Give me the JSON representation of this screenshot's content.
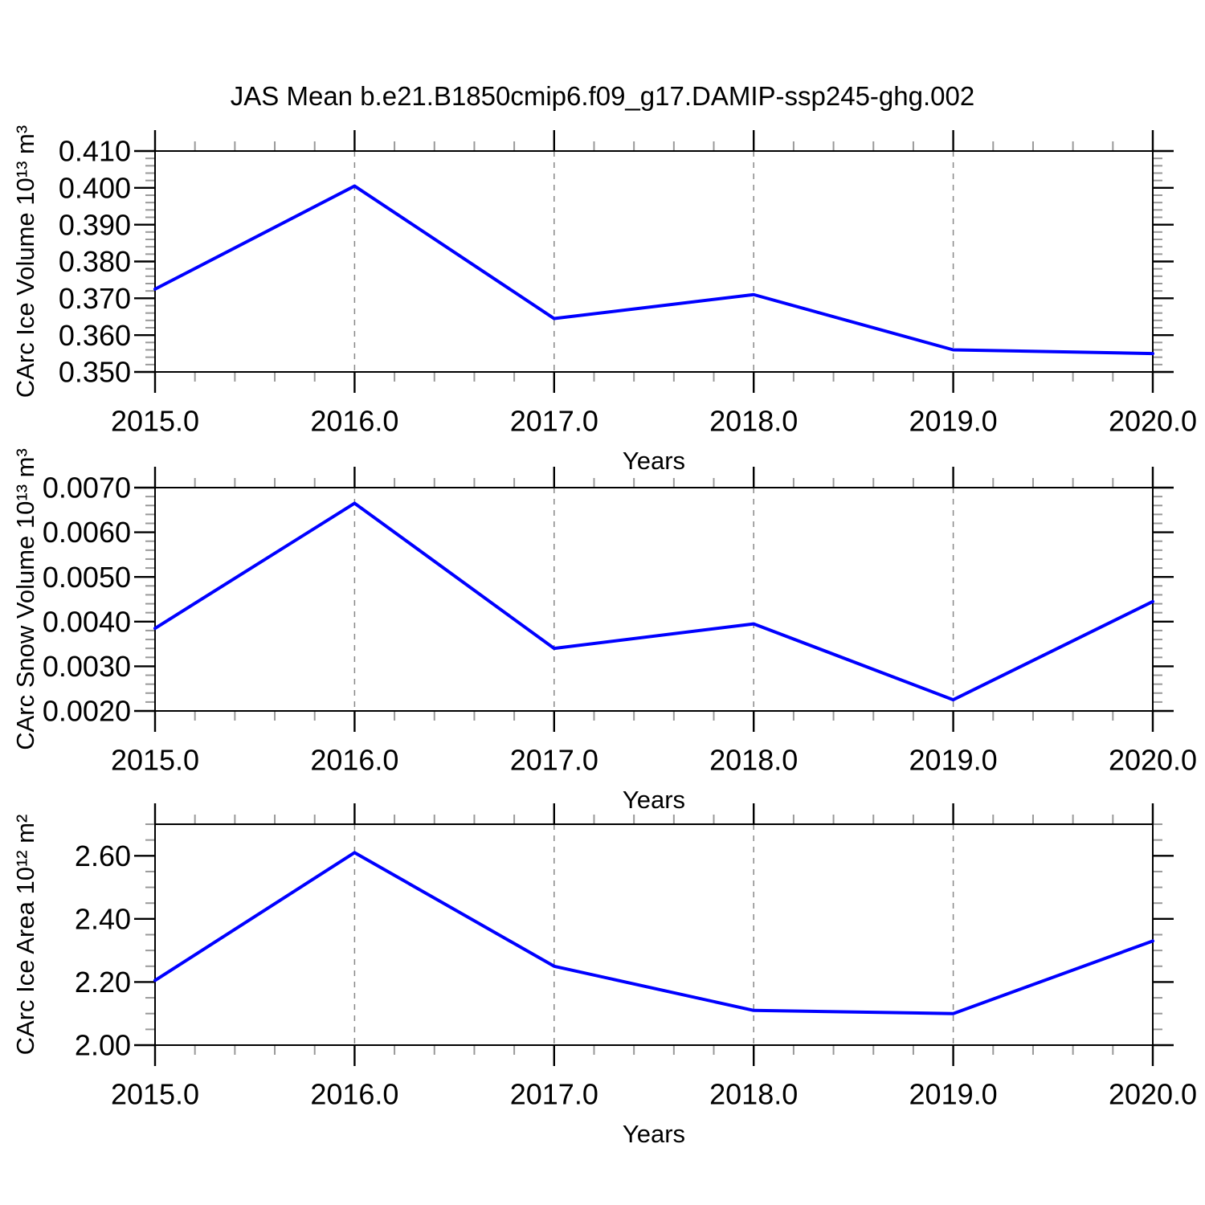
{
  "title": "JAS Mean b.e21.B1850cmip6.f09_g17.DAMIP-ssp245-ghg.002",
  "line_color": "#0000ff",
  "chart_data": [
    {
      "type": "line",
      "name": "carc-ice-volume",
      "x": [
        2015.0,
        2016.0,
        2017.0,
        2018.0,
        2019.0,
        2020.0
      ],
      "values": [
        0.3725,
        0.4005,
        0.3645,
        0.371,
        0.356,
        0.355
      ],
      "ylabel": "CArc Ice Volume 10¹³ m³",
      "xlabel": "Years",
      "ylim": [
        0.35,
        0.41
      ],
      "ytick_values": [
        0.35,
        0.36,
        0.37,
        0.38,
        0.39,
        0.4,
        0.41
      ],
      "ytick_labels": [
        "0.350",
        "0.360",
        "0.370",
        "0.380",
        "0.390",
        "0.400",
        "0.410"
      ],
      "ytick_minor_step": 0.002,
      "xlim": [
        2015.0,
        2020.0
      ],
      "xtick_values": [
        2015.0,
        2016.0,
        2017.0,
        2018.0,
        2019.0,
        2020.0
      ],
      "xtick_labels": [
        "2015.0",
        "2016.0",
        "2017.0",
        "2018.0",
        "2019.0",
        "2020.0"
      ],
      "xtick_minor_step": 0.2,
      "grid": "vertical-dashed-at-interior-years",
      "line_color": "#0000ff"
    },
    {
      "type": "line",
      "name": "carc-snow-volume",
      "x": [
        2015.0,
        2016.0,
        2017.0,
        2018.0,
        2019.0,
        2020.0
      ],
      "values": [
        0.00385,
        0.00665,
        0.0034,
        0.00395,
        0.00225,
        0.00445
      ],
      "ylabel": "CArc Snow Volume 10¹³ m³",
      "xlabel": "Years",
      "ylim": [
        0.002,
        0.007
      ],
      "ytick_values": [
        0.002,
        0.003,
        0.004,
        0.005,
        0.006,
        0.007
      ],
      "ytick_labels": [
        "0.0020",
        "0.0030",
        "0.0040",
        "0.0050",
        "0.0060",
        "0.0070"
      ],
      "ytick_minor_step": 0.0002,
      "xlim": [
        2015.0,
        2020.0
      ],
      "xtick_values": [
        2015.0,
        2016.0,
        2017.0,
        2018.0,
        2019.0,
        2020.0
      ],
      "xtick_labels": [
        "2015.0",
        "2016.0",
        "2017.0",
        "2018.0",
        "2019.0",
        "2020.0"
      ],
      "xtick_minor_step": 0.2,
      "grid": "vertical-dashed-at-interior-years",
      "line_color": "#0000ff"
    },
    {
      "type": "line",
      "name": "carc-ice-area",
      "x": [
        2015.0,
        2016.0,
        2017.0,
        2018.0,
        2019.0,
        2020.0
      ],
      "values": [
        2.205,
        2.61,
        2.25,
        2.11,
        2.1,
        2.33
      ],
      "ylabel": "CArc Ice Area 10¹² m²",
      "xlabel": "Years",
      "ylim": [
        2.0,
        2.7
      ],
      "ytick_values": [
        2.0,
        2.2,
        2.4,
        2.6
      ],
      "ytick_labels": [
        "2.00",
        "2.20",
        "2.40",
        "2.60"
      ],
      "ytick_minor_step": 0.05,
      "xlim": [
        2015.0,
        2020.0
      ],
      "xtick_values": [
        2015.0,
        2016.0,
        2017.0,
        2018.0,
        2019.0,
        2020.0
      ],
      "xtick_labels": [
        "2015.0",
        "2016.0",
        "2017.0",
        "2018.0",
        "2019.0",
        "2020.0"
      ],
      "xtick_minor_step": 0.2,
      "grid": "vertical-dashed-at-interior-years",
      "line_color": "#0000ff"
    }
  ]
}
